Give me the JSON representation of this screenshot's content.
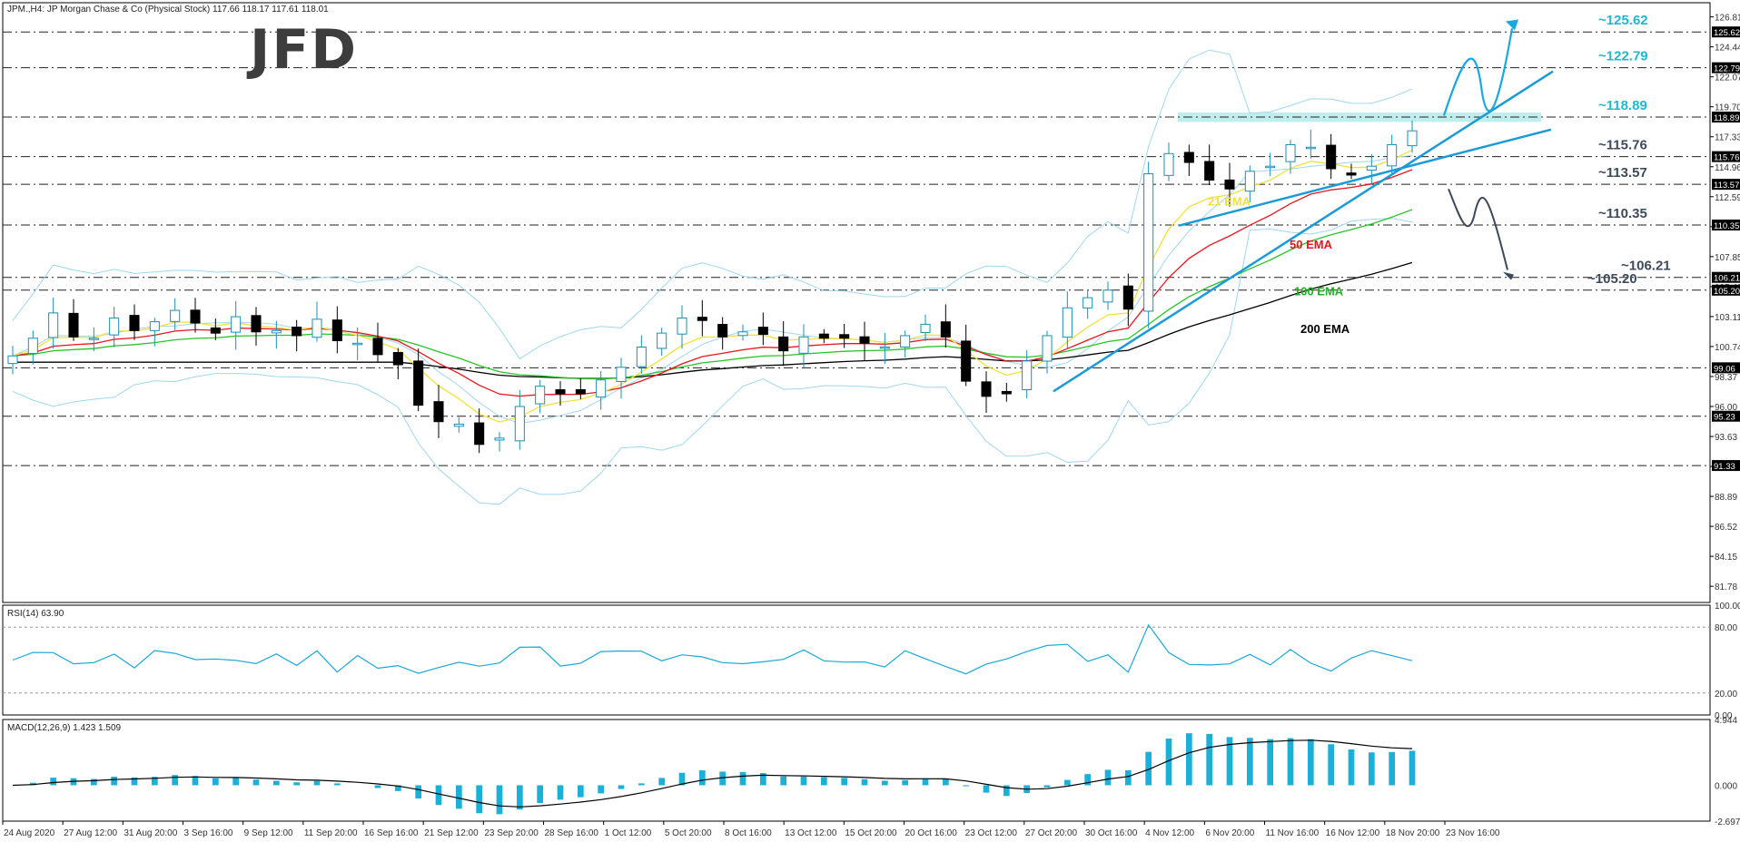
{
  "header": {
    "symbol_line": "JPM.,H4: JP Morgan Chase & Co (Physical Stock) 117.66 118.17 117.61 118.01"
  },
  "logo_text": "JFD",
  "price_axis_ticks": [
    "126.81",
    "124.44",
    "122.07",
    "119.70",
    "117.33",
    "114.96",
    "112.59",
    "110.22",
    "107.85",
    "105.48",
    "103.11",
    "100.74",
    "98.37",
    "96.00",
    "93.63",
    "91.26",
    "88.89",
    "86.52",
    "84.15",
    "81.78"
  ],
  "level_tags": [
    "125.62",
    "122.79",
    "118.89",
    "115.76",
    "113.57",
    "110.35",
    "106.21",
    "105.20",
    "99.06",
    "95.23",
    "91.33"
  ],
  "level_annotations": [
    "~125.62",
    "~122.79",
    "~118.89",
    "~115.76",
    "~113.57",
    "~110.35",
    "~106.21",
    "~105.20"
  ],
  "ema_labels": {
    "ema21": "21 EMA",
    "ema50": "50 EMA",
    "ema100": "100 EMA",
    "ema200": "200 EMA"
  },
  "colors": {
    "candle_up": "#1ab0d8",
    "candle_down": "#000000",
    "bollinger": "#9fd7ee",
    "ema21": "#f3e03c",
    "ema50": "#e8141e",
    "ema100": "#28c428",
    "ema200": "#000000",
    "trendline": "#1a9bd8",
    "resistance_zone": "#b8ecec",
    "annotation": "#22b7ce",
    "arrow_up": "#1aa8e0",
    "arrow_down": "#3b4a5a",
    "rsi_line": "#1aa8d8",
    "macd_hist": "#1ab0d8",
    "macd_signal": "#000000"
  },
  "rsi": {
    "label": "RSI(14) 63.90",
    "ticks": [
      "100.00",
      "80.00",
      "20.00",
      "0.00"
    ]
  },
  "macd": {
    "label": "MACD(12,26,9) 1.423 1.509",
    "ticks": [
      "4.944",
      "0.000",
      "-2.697"
    ]
  },
  "time_axis": [
    "24 Aug 2020",
    "27 Aug 12:00",
    "31 Aug 20:00",
    "3 Sep 16:00",
    "9 Sep 12:00",
    "11 Sep 20:00",
    "16 Sep 16:00",
    "21 Sep 12:00",
    "23 Sep 20:00",
    "28 Sep 16:00",
    "1 Oct 12:00",
    "5 Oct 20:00",
    "8 Oct 16:00",
    "13 Oct 12:00",
    "15 Oct 20:00",
    "20 Oct 16:00",
    "23 Oct 12:00",
    "27 Oct 20:00",
    "30 Oct 16:00",
    "4 Nov 12:00",
    "6 Nov 20:00",
    "11 Nov 16:00",
    "16 Nov 12:00",
    "18 Nov 20:00",
    "23 Nov 16:00"
  ],
  "chart_data": {
    "type": "candlestick",
    "symbol": "JPM",
    "timeframe": "H4",
    "ylim": [
      80.5,
      127.5
    ],
    "close_path": [
      100.0,
      101.4,
      103.4,
      101.5,
      101.4,
      103.0,
      102.0,
      102.7,
      103.6,
      102.6,
      101.8,
      103.1,
      101.9,
      102.0,
      101.6,
      102.9,
      101.2,
      101.0,
      100.1,
      99.3,
      96.1,
      94.8,
      94.6,
      93.0,
      93.5,
      96.0,
      97.6,
      97.0,
      97.0,
      98.1,
      99.1,
      100.7,
      101.8,
      103.0,
      102.8,
      101.5,
      101.9,
      101.7,
      100.4,
      101.5,
      101.4,
      101.4,
      101.0,
      100.7,
      101.6,
      102.5,
      101.5,
      98.0,
      96.8,
      97.0,
      99.6,
      101.6,
      103.8,
      104.6,
      105.2,
      103.7,
      114.4,
      116.0,
      115.3,
      113.9,
      113.2,
      114.6,
      115.0,
      116.7,
      116.5,
      114.8,
      114.3,
      115.0,
      116.7,
      117.8
    ],
    "levels": [
      125.62,
      122.79,
      118.89,
      115.76,
      113.57,
      110.35,
      106.21,
      105.2,
      99.06,
      95.23,
      91.33
    ],
    "series": [
      {
        "name": "21 EMA"
      },
      {
        "name": "50 EMA"
      },
      {
        "name": "100 EMA"
      },
      {
        "name": "200 EMA"
      }
    ],
    "rsi_last": 63.9,
    "macd_last": [
      1.423,
      1.509
    ]
  }
}
